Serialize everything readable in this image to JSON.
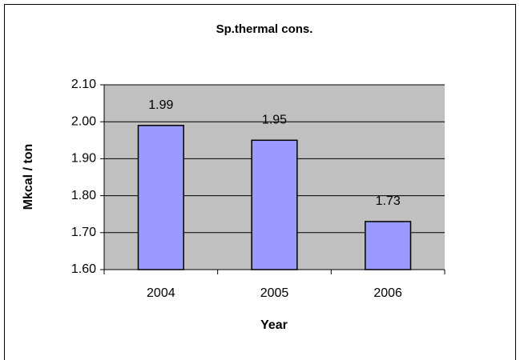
{
  "chart_data": {
    "type": "bar",
    "title": "Sp.thermal cons.",
    "xlabel": "Year",
    "ylabel": "Mkcal / ton",
    "categories": [
      "2004",
      "2005",
      "2006"
    ],
    "values": [
      1.99,
      1.95,
      1.73
    ],
    "color": "#9999ff",
    "ylim": [
      1.6,
      2.1
    ],
    "yticks": [
      {
        "value": 1.6,
        "label": "1.60"
      },
      {
        "value": 1.7,
        "label": "1.70"
      },
      {
        "value": 1.8,
        "label": "1.80"
      },
      {
        "value": 1.9,
        "label": "1.90"
      },
      {
        "value": 2.0,
        "label": "2.00"
      },
      {
        "value": 2.1,
        "label": "2.10"
      }
    ],
    "grid": true,
    "plot_background": "#c0c0c0"
  }
}
